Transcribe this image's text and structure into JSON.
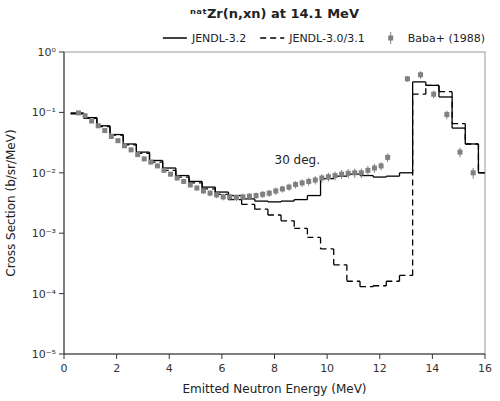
{
  "chart_data": {
    "type": "line",
    "title": "ⁿᵃᵗZr(n,xn) at 14.1 MeV",
    "xlabel": "Emitted Neutron Energy (MeV)",
    "ylabel": "Cross Section (b/sr/MeV)",
    "annotation": "30 deg.",
    "log": "y",
    "grid": false,
    "legend": "top",
    "xlim": [
      0,
      16
    ],
    "xticks": [
      0,
      2,
      4,
      6,
      8,
      10,
      12,
      14,
      16
    ],
    "ylim": [
      1e-05,
      1
    ],
    "yticks": [
      {
        "value": 1e-05,
        "label": "10⁻⁵"
      },
      {
        "value": 0.0001,
        "label": "10⁻⁴"
      },
      {
        "value": 0.001,
        "label": "10⁻³"
      },
      {
        "value": 0.01,
        "label": "10⁻²"
      },
      {
        "value": 0.1,
        "label": "10⁻¹"
      },
      {
        "value": 1,
        "label": "10⁰"
      }
    ],
    "series": [
      {
        "name": "JENDL-3.2",
        "type": "step",
        "color": "#000000",
        "line_style": "solid",
        "bins": [
          0.25,
          0.75,
          1.25,
          1.75,
          2.25,
          2.75,
          3.25,
          3.75,
          4.25,
          4.75,
          5.25,
          5.75,
          6.25,
          6.75,
          7.25,
          7.75,
          8.25,
          8.75,
          9.25,
          9.75,
          10.25,
          10.75,
          11.25,
          11.75,
          12.25,
          12.75,
          13.25,
          13.75,
          14.25,
          14.75,
          15.25,
          15.75,
          16.0
        ],
        "values": [
          0.098,
          0.082,
          0.06,
          0.043,
          0.03,
          0.022,
          0.016,
          0.012,
          0.009,
          0.0072,
          0.0058,
          0.0048,
          0.0042,
          0.0037,
          0.0034,
          0.0033,
          0.0034,
          0.0036,
          0.0042,
          0.008,
          0.0088,
          0.0095,
          0.009,
          0.0085,
          0.0088,
          0.01,
          0.32,
          0.28,
          0.18,
          0.055,
          0.03,
          0.01
        ]
      },
      {
        "name": "JENDL-3.0/3.1",
        "type": "step",
        "color": "#000000",
        "line_style": "dashed",
        "bins": [
          0.25,
          0.75,
          1.25,
          1.75,
          2.25,
          2.75,
          3.25,
          3.75,
          4.25,
          4.75,
          5.25,
          5.75,
          6.25,
          6.75,
          7.25,
          7.75,
          8.25,
          8.75,
          9.25,
          9.75,
          10.25,
          10.75,
          11.25,
          11.75,
          12.25,
          12.75,
          13.25,
          13.75,
          14.25,
          14.75,
          15.25,
          15.75,
          16.0
        ],
        "values": [
          0.095,
          0.08,
          0.058,
          0.042,
          0.029,
          0.021,
          0.015,
          0.011,
          0.0085,
          0.0068,
          0.0054,
          0.0044,
          0.0036,
          0.003,
          0.0025,
          0.002,
          0.0016,
          0.0012,
          0.00085,
          0.00055,
          0.0003,
          0.00016,
          0.00013,
          0.000135,
          0.00016,
          0.0002,
          0.2,
          0.28,
          0.22,
          0.065,
          0.03,
          0.01
        ]
      },
      {
        "name": "Baba+ (1988)",
        "type": "scatter",
        "color": "#808080",
        "marker": "square",
        "x": [
          0.55,
          0.8,
          1.05,
          1.3,
          1.55,
          1.8,
          2.05,
          2.3,
          2.55,
          2.8,
          3.05,
          3.3,
          3.55,
          3.8,
          4.05,
          4.3,
          4.55,
          4.8,
          5.05,
          5.3,
          5.55,
          5.8,
          6.05,
          6.3,
          6.55,
          6.8,
          7.05,
          7.3,
          7.55,
          7.8,
          8.05,
          8.3,
          8.55,
          8.8,
          9.05,
          9.3,
          9.55,
          9.8,
          10.05,
          10.3,
          10.55,
          10.8,
          11.05,
          11.3,
          11.55,
          11.8,
          12.05,
          12.3,
          13.05,
          13.55,
          14.05,
          14.55,
          15.05,
          15.55
        ],
        "values": [
          0.098,
          0.088,
          0.072,
          0.06,
          0.05,
          0.04,
          0.034,
          0.028,
          0.024,
          0.02,
          0.017,
          0.015,
          0.013,
          0.011,
          0.0095,
          0.0082,
          0.0072,
          0.0063,
          0.0056,
          0.005,
          0.0046,
          0.0043,
          0.004,
          0.004,
          0.0039,
          0.004,
          0.0041,
          0.0042,
          0.0044,
          0.0046,
          0.005,
          0.0054,
          0.0058,
          0.0064,
          0.0068,
          0.0072,
          0.0076,
          0.0082,
          0.0086,
          0.009,
          0.0095,
          0.0098,
          0.01,
          0.01,
          0.011,
          0.012,
          0.013,
          0.018,
          0.36,
          0.42,
          0.2,
          0.092,
          0.022,
          0.01
        ],
        "error_lo": [
          0.006,
          0.005,
          0.005,
          0.004,
          0.003,
          0.003,
          0.002,
          0.002,
          0.002,
          0.0015,
          0.0012,
          0.001,
          0.001,
          0.0009,
          0.0008,
          0.0007,
          0.0006,
          0.0006,
          0.0005,
          0.0005,
          0.0005,
          0.0005,
          0.0005,
          0.0005,
          0.0005,
          0.0005,
          0.0005,
          0.0005,
          0.0006,
          0.0006,
          0.0007,
          0.0007,
          0.0008,
          0.0009,
          0.001,
          0.0011,
          0.0012,
          0.0013,
          0.0014,
          0.0015,
          0.0016,
          0.0017,
          0.0018,
          0.0018,
          0.002,
          0.002,
          0.002,
          0.003,
          0.04,
          0.06,
          0.03,
          0.015,
          0.004,
          0.002
        ],
        "error_hi": [
          0.006,
          0.005,
          0.005,
          0.004,
          0.003,
          0.003,
          0.002,
          0.002,
          0.002,
          0.0015,
          0.0012,
          0.001,
          0.001,
          0.0009,
          0.0008,
          0.0007,
          0.0006,
          0.0006,
          0.0005,
          0.0005,
          0.0005,
          0.0005,
          0.0005,
          0.0005,
          0.0005,
          0.0005,
          0.0005,
          0.0005,
          0.0006,
          0.0006,
          0.0007,
          0.0007,
          0.0008,
          0.0009,
          0.001,
          0.0011,
          0.0012,
          0.0013,
          0.0014,
          0.0015,
          0.0016,
          0.0017,
          0.0018,
          0.0018,
          0.002,
          0.002,
          0.002,
          0.003,
          0.04,
          0.06,
          0.03,
          0.015,
          0.004,
          0.002
        ]
      }
    ]
  }
}
